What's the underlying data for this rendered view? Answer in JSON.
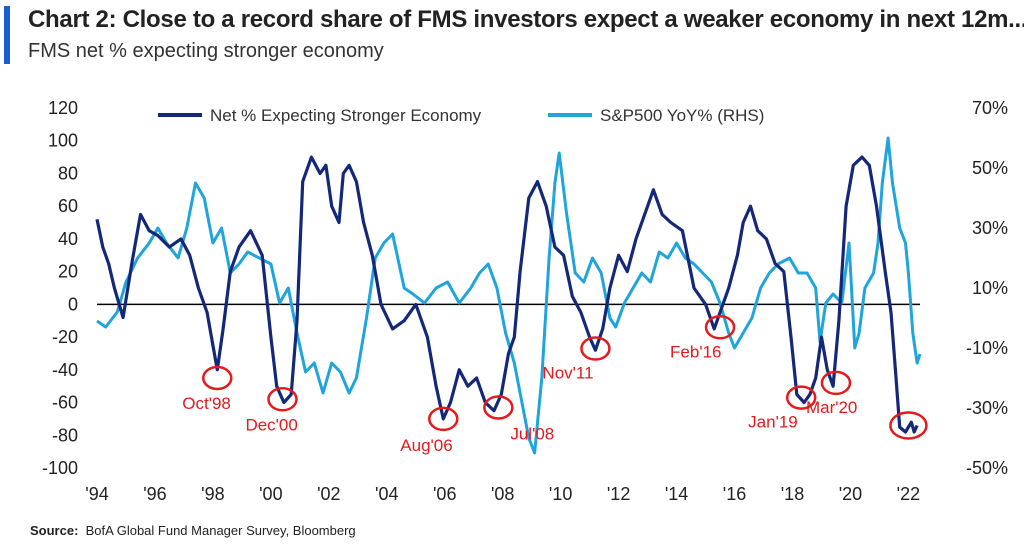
{
  "header": {
    "title": "Chart 2: Close to a record share of FMS investors expect a weaker economy in next 12m...",
    "subtitle": "FMS net % expecting stronger economy"
  },
  "footer": {
    "source_label": "Source:",
    "source_text": "BofA Global Fund Manager Survey, Bloomberg"
  },
  "colors": {
    "accent": "#1a5fd1",
    "fms_series": "#14287a",
    "sp_series": "#1fa5dc",
    "annotation": "#e41a1c",
    "zero_line": "#000000"
  },
  "chart_data": {
    "type": "line",
    "x_axis": {
      "ticks": [
        "'94",
        "'96",
        "'98",
        "'00",
        "'02",
        "'04",
        "'06",
        "'08",
        "'10",
        "'12",
        "'14",
        "'16",
        "'18",
        "'20",
        "'22"
      ],
      "range": [
        1994,
        2022.4
      ]
    },
    "y_left": {
      "ticks": [
        120,
        100,
        80,
        60,
        40,
        20,
        0,
        -20,
        -40,
        -60,
        -80,
        -100
      ],
      "range": [
        -100,
        120
      ]
    },
    "y_right": {
      "ticks": [
        "70%",
        "50%",
        "30%",
        "10%",
        "-10%",
        "-30%",
        "-50%"
      ],
      "range": [
        -50,
        70
      ]
    },
    "legend_placement": "top",
    "series": [
      {
        "name": "Net % Expecting Stronger Economy",
        "axis": "left",
        "points": [
          [
            1994.0,
            52
          ],
          [
            1994.2,
            35
          ],
          [
            1994.4,
            25
          ],
          [
            1994.6,
            10
          ],
          [
            1994.9,
            -8
          ],
          [
            1995.2,
            25
          ],
          [
            1995.5,
            55
          ],
          [
            1995.8,
            45
          ],
          [
            1996.1,
            42
          ],
          [
            1996.5,
            35
          ],
          [
            1996.9,
            40
          ],
          [
            1997.2,
            30
          ],
          [
            1997.5,
            10
          ],
          [
            1997.8,
            -5
          ],
          [
            1998.0,
            -25
          ],
          [
            1998.15,
            -40
          ],
          [
            1998.35,
            -15
          ],
          [
            1998.6,
            20
          ],
          [
            1998.9,
            35
          ],
          [
            1999.3,
            45
          ],
          [
            1999.7,
            30
          ],
          [
            2000.0,
            -20
          ],
          [
            2000.2,
            -50
          ],
          [
            2000.45,
            -60
          ],
          [
            2000.7,
            -55
          ],
          [
            2000.9,
            -10
          ],
          [
            2001.1,
            75
          ],
          [
            2001.4,
            90
          ],
          [
            2001.7,
            80
          ],
          [
            2001.9,
            85
          ],
          [
            2002.1,
            60
          ],
          [
            2002.35,
            50
          ],
          [
            2002.5,
            80
          ],
          [
            2002.7,
            85
          ],
          [
            2002.95,
            75
          ],
          [
            2003.2,
            50
          ],
          [
            2003.5,
            30
          ],
          [
            2003.8,
            0
          ],
          [
            2004.2,
            -15
          ],
          [
            2004.6,
            -10
          ],
          [
            2005.0,
            0
          ],
          [
            2005.4,
            -20
          ],
          [
            2005.7,
            -50
          ],
          [
            2005.95,
            -70
          ],
          [
            2006.2,
            -60
          ],
          [
            2006.5,
            -40
          ],
          [
            2006.8,
            -50
          ],
          [
            2007.1,
            -45
          ],
          [
            2007.4,
            -60
          ],
          [
            2007.7,
            -65
          ],
          [
            2007.95,
            -55
          ],
          [
            2008.2,
            -30
          ],
          [
            2008.4,
            -20
          ],
          [
            2008.6,
            20
          ],
          [
            2008.9,
            65
          ],
          [
            2009.2,
            75
          ],
          [
            2009.5,
            60
          ],
          [
            2009.8,
            35
          ],
          [
            2010.1,
            30
          ],
          [
            2010.4,
            5
          ],
          [
            2010.7,
            -5
          ],
          [
            2011.0,
            -20
          ],
          [
            2011.2,
            -28
          ],
          [
            2011.45,
            -15
          ],
          [
            2011.7,
            10
          ],
          [
            2012.0,
            30
          ],
          [
            2012.3,
            20
          ],
          [
            2012.6,
            40
          ],
          [
            2012.9,
            55
          ],
          [
            2013.2,
            70
          ],
          [
            2013.5,
            55
          ],
          [
            2013.8,
            50
          ],
          [
            2014.2,
            45
          ],
          [
            2014.6,
            10
          ],
          [
            2015.0,
            0
          ],
          [
            2015.3,
            -15
          ],
          [
            2015.5,
            -5
          ],
          [
            2015.8,
            10
          ],
          [
            2016.1,
            30
          ],
          [
            2016.3,
            50
          ],
          [
            2016.55,
            60
          ],
          [
            2016.8,
            45
          ],
          [
            2017.1,
            40
          ],
          [
            2017.4,
            25
          ],
          [
            2017.7,
            20
          ],
          [
            2017.95,
            -20
          ],
          [
            2018.15,
            -55
          ],
          [
            2018.4,
            -60
          ],
          [
            2018.6,
            -55
          ],
          [
            2018.8,
            -45
          ],
          [
            2019.0,
            -20
          ],
          [
            2019.2,
            -40
          ],
          [
            2019.4,
            -50
          ],
          [
            2019.6,
            -10
          ],
          [
            2019.85,
            60
          ],
          [
            2020.1,
            85
          ],
          [
            2020.4,
            90
          ],
          [
            2020.65,
            85
          ],
          [
            2020.9,
            60
          ],
          [
            2021.2,
            20
          ],
          [
            2021.4,
            -5
          ],
          [
            2021.55,
            -40
          ],
          [
            2021.7,
            -75
          ],
          [
            2021.9,
            -78
          ],
          [
            2022.1,
            -72
          ],
          [
            2022.2,
            -78
          ],
          [
            2022.3,
            -74
          ]
        ]
      },
      {
        "name": "S&P500 YoY% (RHS)",
        "axis": "right",
        "points": [
          [
            1994.0,
            -1
          ],
          [
            1994.3,
            -3
          ],
          [
            1994.7,
            2
          ],
          [
            1995.0,
            12
          ],
          [
            1995.4,
            20
          ],
          [
            1995.8,
            25
          ],
          [
            1996.1,
            30
          ],
          [
            1996.4,
            25
          ],
          [
            1996.8,
            20
          ],
          [
            1997.1,
            30
          ],
          [
            1997.4,
            45
          ],
          [
            1997.7,
            40
          ],
          [
            1998.0,
            25
          ],
          [
            1998.3,
            30
          ],
          [
            1998.6,
            15
          ],
          [
            1998.9,
            18
          ],
          [
            1999.2,
            22
          ],
          [
            1999.6,
            20
          ],
          [
            2000.0,
            18
          ],
          [
            2000.3,
            5
          ],
          [
            2000.6,
            10
          ],
          [
            2000.9,
            -5
          ],
          [
            2001.2,
            -18
          ],
          [
            2001.5,
            -15
          ],
          [
            2001.8,
            -25
          ],
          [
            2002.1,
            -15
          ],
          [
            2002.4,
            -18
          ],
          [
            2002.7,
            -25
          ],
          [
            2002.95,
            -20
          ],
          [
            2003.3,
            0
          ],
          [
            2003.6,
            20
          ],
          [
            2003.9,
            25
          ],
          [
            2004.2,
            28
          ],
          [
            2004.6,
            10
          ],
          [
            2004.9,
            8
          ],
          [
            2005.3,
            5
          ],
          [
            2005.7,
            10
          ],
          [
            2006.1,
            12
          ],
          [
            2006.5,
            5
          ],
          [
            2006.9,
            10
          ],
          [
            2007.2,
            15
          ],
          [
            2007.5,
            18
          ],
          [
            2007.8,
            10
          ],
          [
            2008.1,
            -5
          ],
          [
            2008.4,
            -15
          ],
          [
            2008.6,
            -25
          ],
          [
            2008.9,
            -40
          ],
          [
            2009.1,
            -45
          ],
          [
            2009.35,
            -20
          ],
          [
            2009.6,
            20
          ],
          [
            2009.8,
            45
          ],
          [
            2009.95,
            55
          ],
          [
            2010.2,
            35
          ],
          [
            2010.5,
            15
          ],
          [
            2010.8,
            12
          ],
          [
            2011.1,
            20
          ],
          [
            2011.4,
            15
          ],
          [
            2011.7,
            0
          ],
          [
            2011.9,
            -3
          ],
          [
            2012.2,
            5
          ],
          [
            2012.5,
            10
          ],
          [
            2012.8,
            15
          ],
          [
            2013.1,
            12
          ],
          [
            2013.4,
            22
          ],
          [
            2013.7,
            20
          ],
          [
            2014.0,
            25
          ],
          [
            2014.3,
            20
          ],
          [
            2014.6,
            18
          ],
          [
            2014.9,
            15
          ],
          [
            2015.2,
            12
          ],
          [
            2015.5,
            5
          ],
          [
            2015.8,
            -5
          ],
          [
            2016.0,
            -10
          ],
          [
            2016.3,
            -5
          ],
          [
            2016.6,
            0
          ],
          [
            2016.9,
            10
          ],
          [
            2017.2,
            15
          ],
          [
            2017.5,
            18
          ],
          [
            2017.9,
            20
          ],
          [
            2018.2,
            15
          ],
          [
            2018.5,
            15
          ],
          [
            2018.8,
            10
          ],
          [
            2018.95,
            -8
          ],
          [
            2019.15,
            5
          ],
          [
            2019.4,
            8
          ],
          [
            2019.7,
            5
          ],
          [
            2019.95,
            25
          ],
          [
            2020.15,
            -10
          ],
          [
            2020.3,
            -5
          ],
          [
            2020.5,
            10
          ],
          [
            2020.8,
            15
          ],
          [
            2020.95,
            25
          ],
          [
            2021.1,
            45
          ],
          [
            2021.3,
            60
          ],
          [
            2021.45,
            45
          ],
          [
            2021.7,
            30
          ],
          [
            2021.9,
            25
          ],
          [
            2022.0,
            15
          ],
          [
            2022.15,
            -5
          ],
          [
            2022.3,
            -15
          ],
          [
            2022.4,
            -12
          ]
        ]
      }
    ],
    "annotations": [
      {
        "label": "Oct'98",
        "x": 1998.15,
        "y": -45,
        "lx": -35,
        "ly": 75
      },
      {
        "label": "Dec'00",
        "x": 2000.4,
        "y": -58,
        "lx": -37,
        "ly": 75
      },
      {
        "label": "Aug'06",
        "x": 2005.95,
        "y": -70,
        "lx": -43,
        "ly": 76
      },
      {
        "label": "Jul'08",
        "x": 2007.85,
        "y": -63,
        "lx": 12,
        "ly": 76
      },
      {
        "label": "Nov'11",
        "x": 2011.2,
        "y": -27,
        "lx": -53,
        "ly": 74
      },
      {
        "label": "Feb'16",
        "x": 2015.5,
        "y": -14,
        "lx": -50,
        "ly": 74
      },
      {
        "label": "Jan'19",
        "x": 2018.3,
        "y": -57,
        "lx": -53,
        "ly": 74
      },
      {
        "label": "Mar'20",
        "x": 2019.5,
        "y": -48,
        "lx": -30,
        "ly": 74
      },
      {
        "label": "",
        "x": 2022.0,
        "y": -74,
        "lx": 0,
        "ly": 0
      }
    ]
  }
}
